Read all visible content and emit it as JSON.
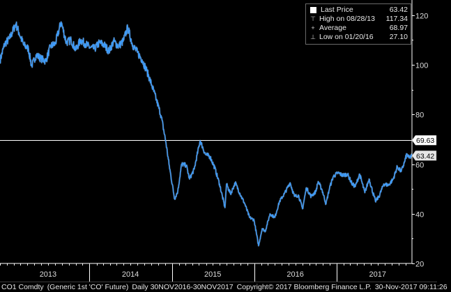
{
  "chart_data": {
    "type": "line",
    "title": "",
    "xlabel": "",
    "ylabel": "",
    "x_range": [
      "2012-11-30",
      "2017-11-30"
    ],
    "ylim": [
      20,
      125
    ],
    "y_ticks": [
      20,
      40,
      60,
      80,
      100,
      120
    ],
    "x_tick_labels": [
      "2013",
      "2014",
      "2015",
      "2016",
      "2017"
    ],
    "x_tick_dates": [
      "2013-07-01",
      "2014-07-01",
      "2015-07-01",
      "2016-07-01",
      "2017-07-01"
    ],
    "x_year_boundaries": [
      "2014-01-01",
      "2015-01-01",
      "2016-01-01",
      "2017-01-01"
    ],
    "grid": false,
    "axis_side": "right",
    "series": [
      {
        "name": "Last Price",
        "color": "#3d9dff",
        "points": [
          [
            "2012-11-30",
            101.8
          ],
          [
            "2012-12-21",
            108.5
          ],
          [
            "2013-01-11",
            110.5
          ],
          [
            "2013-02-08",
            116.5
          ],
          [
            "2013-02-22",
            113.0
          ],
          [
            "2013-03-15",
            108.0
          ],
          [
            "2013-04-05",
            106.5
          ],
          [
            "2013-04-19",
            99.5
          ],
          [
            "2013-05-10",
            104.0
          ],
          [
            "2013-05-31",
            102.5
          ],
          [
            "2013-06-21",
            101.5
          ],
          [
            "2013-07-12",
            107.5
          ],
          [
            "2013-08-02",
            108.5
          ],
          [
            "2013-08-28",
            117.3
          ],
          [
            "2013-09-20",
            109.0
          ],
          [
            "2013-10-11",
            110.0
          ],
          [
            "2013-11-01",
            106.0
          ],
          [
            "2013-11-22",
            110.0
          ],
          [
            "2013-12-13",
            108.5
          ],
          [
            "2014-01-03",
            107.0
          ],
          [
            "2014-01-24",
            106.5
          ],
          [
            "2014-02-14",
            109.0
          ],
          [
            "2014-03-07",
            108.0
          ],
          [
            "2014-03-28",
            105.5
          ],
          [
            "2014-04-18",
            109.5
          ],
          [
            "2014-05-09",
            107.5
          ],
          [
            "2014-05-30",
            109.5
          ],
          [
            "2014-06-19",
            115.0
          ],
          [
            "2014-07-11",
            108.0
          ],
          [
            "2014-08-01",
            105.0
          ],
          [
            "2014-08-22",
            102.0
          ],
          [
            "2014-09-12",
            97.5
          ],
          [
            "2014-10-03",
            92.0
          ],
          [
            "2014-10-24",
            86.0
          ],
          [
            "2014-11-14",
            79.5
          ],
          [
            "2014-12-05",
            69.0
          ],
          [
            "2014-12-19",
            60.0
          ],
          [
            "2015-01-13",
            46.0
          ],
          [
            "2015-01-27",
            49.0
          ],
          [
            "2015-02-13",
            60.0
          ],
          [
            "2015-03-06",
            59.5
          ],
          [
            "2015-03-20",
            54.0
          ],
          [
            "2015-04-10",
            58.0
          ],
          [
            "2015-05-06",
            69.5
          ],
          [
            "2015-05-29",
            64.0
          ],
          [
            "2015-06-19",
            63.0
          ],
          [
            "2015-07-10",
            58.5
          ],
          [
            "2015-07-31",
            52.0
          ],
          [
            "2015-08-24",
            42.5
          ],
          [
            "2015-08-31",
            52.0
          ],
          [
            "2015-09-18",
            48.0
          ],
          [
            "2015-10-09",
            52.5
          ],
          [
            "2015-10-30",
            48.0
          ],
          [
            "2015-11-20",
            44.0
          ],
          [
            "2015-12-11",
            38.5
          ],
          [
            "2015-12-31",
            37.5
          ],
          [
            "2016-01-20",
            27.1
          ],
          [
            "2016-02-05",
            34.0
          ],
          [
            "2016-02-19",
            33.0
          ],
          [
            "2016-03-11",
            40.0
          ],
          [
            "2016-04-01",
            38.5
          ],
          [
            "2016-04-22",
            45.0
          ],
          [
            "2016-05-13",
            48.0
          ],
          [
            "2016-06-08",
            52.5
          ],
          [
            "2016-06-27",
            47.0
          ],
          [
            "2016-07-15",
            47.5
          ],
          [
            "2016-08-02",
            42.0
          ],
          [
            "2016-08-19",
            50.5
          ],
          [
            "2016-09-09",
            47.0
          ],
          [
            "2016-09-30",
            49.0
          ],
          [
            "2016-10-10",
            53.0
          ],
          [
            "2016-10-28",
            49.5
          ],
          [
            "2016-11-14",
            44.0
          ],
          [
            "2016-11-30",
            50.5
          ],
          [
            "2016-12-16",
            55.0
          ],
          [
            "2017-01-06",
            56.5
          ],
          [
            "2017-01-27",
            55.5
          ],
          [
            "2017-02-17",
            56.0
          ],
          [
            "2017-03-10",
            52.0
          ],
          [
            "2017-03-24",
            51.0
          ],
          [
            "2017-04-12",
            56.0
          ],
          [
            "2017-05-05",
            48.5
          ],
          [
            "2017-05-24",
            54.0
          ],
          [
            "2017-06-21",
            45.0
          ],
          [
            "2017-07-07",
            47.0
          ],
          [
            "2017-07-28",
            52.0
          ],
          [
            "2017-08-18",
            51.5
          ],
          [
            "2017-09-08",
            54.0
          ],
          [
            "2017-09-26",
            59.0
          ],
          [
            "2017-10-13",
            57.0
          ],
          [
            "2017-10-27",
            60.5
          ],
          [
            "2017-11-07",
            64.0
          ],
          [
            "2017-11-17",
            62.5
          ],
          [
            "2017-11-30",
            63.42
          ]
        ]
      }
    ],
    "reference_line": {
      "value": 69.63,
      "label": "69.63",
      "color": "#ffffff"
    },
    "last_price_flag": {
      "value": 63.42,
      "label": "63.42"
    }
  },
  "legend": {
    "items": [
      {
        "symbol": "swatch",
        "label": "Last Price",
        "value": "63.42"
      },
      {
        "symbol": "high",
        "label": "High on 08/28/13",
        "value": "117.34"
      },
      {
        "symbol": "average",
        "label": "Average",
        "value": "68.97"
      },
      {
        "symbol": "low",
        "label": "Low on 01/20/16",
        "value": "27.10"
      }
    ],
    "symbols": {
      "high": "⊤",
      "average": "+",
      "low": "⊥"
    }
  },
  "footer": {
    "ticker": "CO1 Comdty",
    "description": "(Generic 1st 'CO' Future)",
    "frequency": "Daily 30NOV2016-30NOV2017",
    "copyright": "Copyright© 2017 Bloomberg Finance L.P.",
    "timestamp": "30-Nov-2017 09:11:26"
  },
  "colors": {
    "background": "#000000",
    "line": "#3d9dff",
    "axis": "#ffffff",
    "text": "#dcdcdc"
  }
}
